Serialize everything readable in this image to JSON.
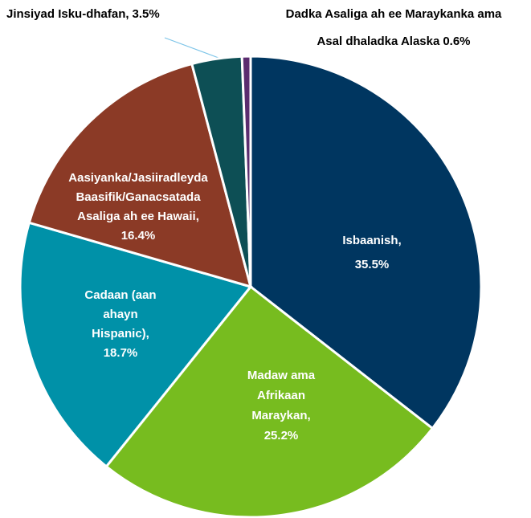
{
  "chart_data": {
    "type": "pie",
    "categories": [
      "Isbaanish,",
      "Madaw ama Afrikaan Maraykan,",
      "Cadaan (aan ahayn Hispanic),",
      "Aasiyanka/Jasiiradleyda Baasifik/Ganacsatada Asaliga ah ee Hawaii,",
      "Jinsiyad Isku-dhafan,",
      "Dadka Asaliga ah ee Maraykanka ama Asal dhaladka Alaska"
    ],
    "values": [
      35.5,
      25.2,
      18.7,
      16.4,
      3.5,
      0.6
    ],
    "value_labels": [
      "35.5%",
      "25.2%",
      "18.7%",
      "16.4%",
      "3.5%",
      "0.6%"
    ],
    "colors": [
      "#003660",
      "#77bc1f",
      "#0091a8",
      "#8b3a26",
      "#0d4f55",
      "#5b2c6f"
    ]
  }
}
